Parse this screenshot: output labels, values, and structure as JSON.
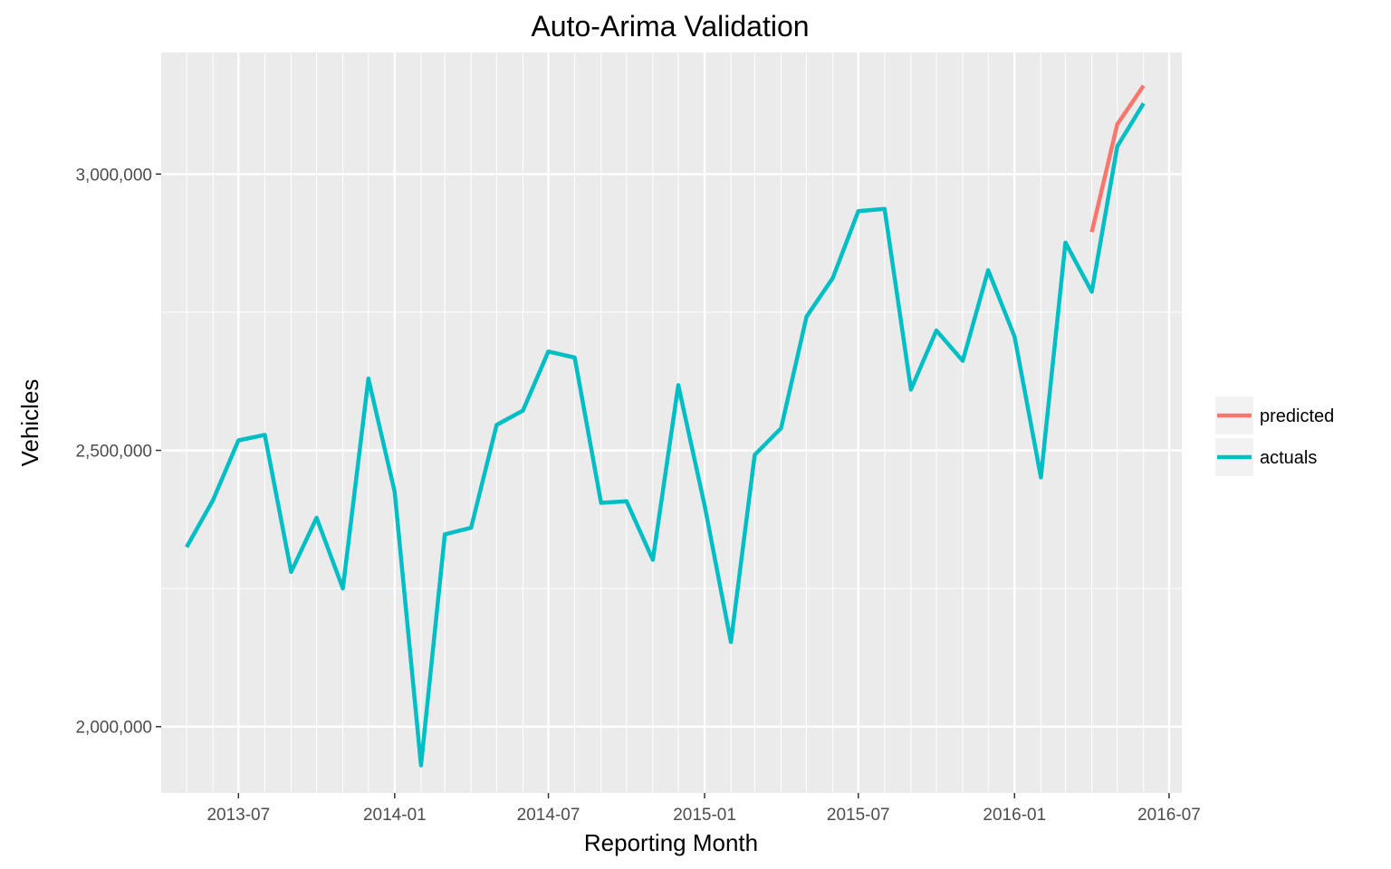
{
  "chart_data": {
    "type": "line",
    "title": "Auto-Arima Validation",
    "xlabel": "Reporting Month",
    "ylabel": "Vehicles",
    "x": [
      "2013-05",
      "2013-06",
      "2013-07",
      "2013-08",
      "2013-09",
      "2013-10",
      "2013-11",
      "2013-12",
      "2014-01",
      "2014-02",
      "2014-03",
      "2014-04",
      "2014-05",
      "2014-06",
      "2014-07",
      "2014-08",
      "2014-09",
      "2014-10",
      "2014-11",
      "2014-12",
      "2015-01",
      "2015-02",
      "2015-03",
      "2015-04",
      "2015-05",
      "2015-06",
      "2015-07",
      "2015-08",
      "2015-09",
      "2015-10",
      "2015-11",
      "2015-12",
      "2016-01",
      "2016-02",
      "2016-03",
      "2016-04",
      "2016-05",
      "2016-06"
    ],
    "series": [
      {
        "name": "predicted",
        "color": "#F8766D",
        "x": [
          "2016-04",
          "2016-05",
          "2016-06"
        ],
        "values": [
          2895000,
          3090000,
          3160000
        ]
      },
      {
        "name": "actuals",
        "color": "#00BFC4",
        "x": [
          "2013-05",
          "2013-06",
          "2013-07",
          "2013-08",
          "2013-09",
          "2013-10",
          "2013-11",
          "2013-12",
          "2014-01",
          "2014-02",
          "2014-03",
          "2014-04",
          "2014-05",
          "2014-06",
          "2014-07",
          "2014-08",
          "2014-09",
          "2014-10",
          "2014-11",
          "2014-12",
          "2015-01",
          "2015-02",
          "2015-03",
          "2015-04",
          "2015-05",
          "2015-06",
          "2015-07",
          "2015-08",
          "2015-09",
          "2015-10",
          "2015-11",
          "2015-12",
          "2016-01",
          "2016-02",
          "2016-03",
          "2016-04",
          "2016-05",
          "2016-06"
        ],
        "values": [
          2325000,
          2410000,
          2518000,
          2528000,
          2280000,
          2378000,
          2250000,
          2630000,
          2425000,
          1930000,
          2348000,
          2360000,
          2546000,
          2572000,
          2679000,
          2668000,
          2405000,
          2408000,
          2302000,
          2618000,
          2400000,
          2153000,
          2492000,
          2540000,
          2742000,
          2812000,
          2933000,
          2937000,
          2610000,
          2717000,
          2662000,
          2826000,
          2706000,
          2451000,
          2876000,
          2787000,
          3050000,
          3128000
        ]
      }
    ],
    "ylim": [
      1880000,
      3220000
    ],
    "xlim": [
      "2013-04-01",
      "2016-07-16"
    ],
    "yticks": [
      2000000,
      2500000,
      3000000
    ],
    "ytick_labels": [
      "2,000,000",
      "2,500,000",
      "3,000,000"
    ],
    "xticks": [
      "2013-07",
      "2014-01",
      "2014-07",
      "2015-01",
      "2015-07",
      "2016-01",
      "2016-07"
    ],
    "xtick_labels": [
      "2013-07",
      "2014-01",
      "2014-07",
      "2015-01",
      "2015-07",
      "2016-01",
      "2016-07"
    ],
    "grid": true,
    "legend_position": "right",
    "background": "#EBEBEB",
    "grid_color": "#FFFFFF"
  }
}
